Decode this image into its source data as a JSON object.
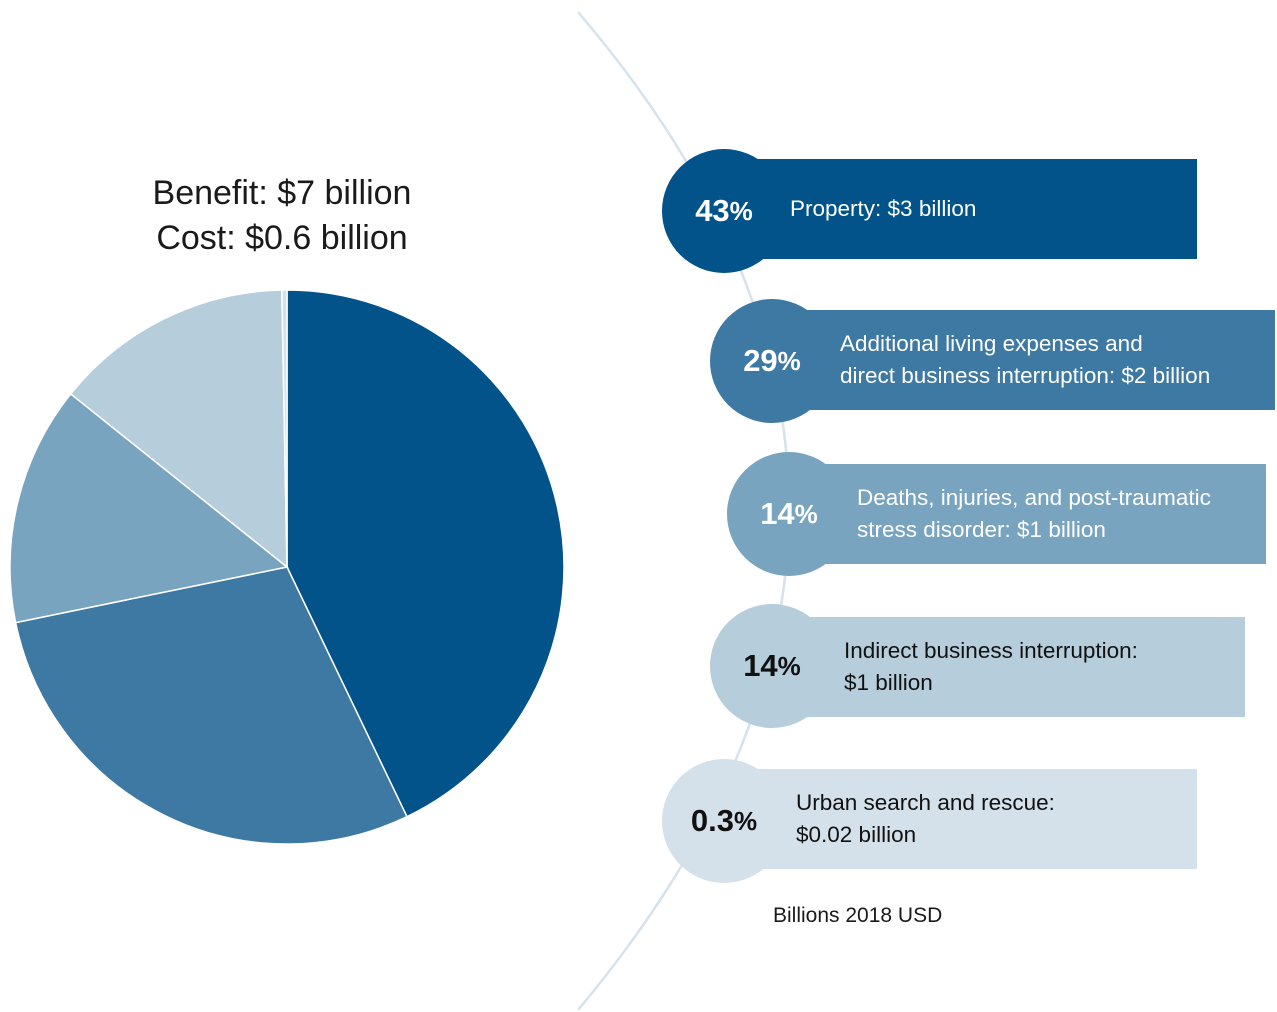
{
  "header": {
    "benefit": "Benefit: $7 billion",
    "cost": "Cost: $0.6 billion"
  },
  "colors": {
    "property": "#01538a",
    "living": "#3e79a3",
    "deaths": "#78a4c0",
    "indirect": "#b6cddb",
    "rescue": "#d4e1ea",
    "arc": "#d6e3ec"
  },
  "chart_data": {
    "type": "pie",
    "title": "",
    "unit_note": "Billions 2018 USD",
    "slices": [
      {
        "key": "property",
        "percent": 43,
        "percent_label": "43",
        "label": "Property: $3 billion",
        "value": 3
      },
      {
        "key": "living",
        "percent": 29,
        "percent_label": "29",
        "label": "Additional living expenses and\ndirect business interruption: $2 billion",
        "value": 2
      },
      {
        "key": "deaths",
        "percent": 14,
        "percent_label": "14",
        "label": "Deaths, injuries, and post-traumatic\nstress disorder: $1 billion",
        "value": 1
      },
      {
        "key": "indirect",
        "percent": 14,
        "percent_label": "14",
        "label": "Indirect business interruption:\n$1 billion",
        "value": 1
      },
      {
        "key": "rescue",
        "percent": 0.3,
        "percent_label": "0.3",
        "label": "Urban search and rescue:\n$0.02 billion",
        "value": 0.02
      }
    ]
  }
}
